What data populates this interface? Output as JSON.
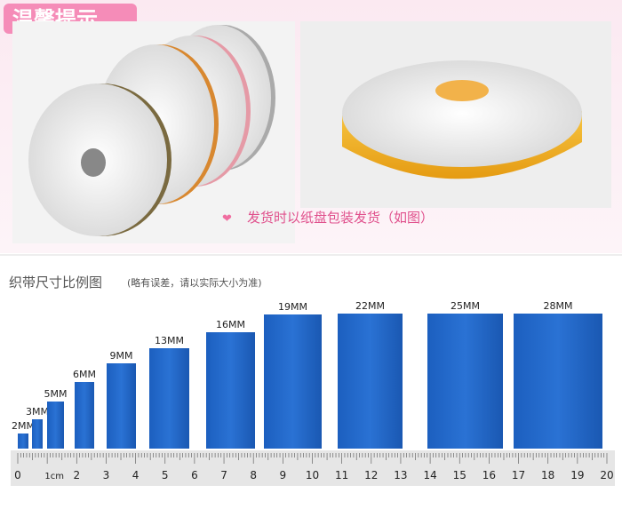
{
  "header": {
    "title": "温馨提示"
  },
  "photo_caption": "发货时以纸盘包装发货（如图）",
  "size_chart": {
    "title": "织带尺寸比例图",
    "note": "(略有误差，请以实际大小为准)",
    "ribbons": [
      "2MM",
      "3MM",
      "5MM",
      "6MM",
      "9MM",
      "13MM",
      "16MM",
      "19MM",
      "22MM",
      "25MM",
      "28MM"
    ],
    "ruler_labels": [
      "0",
      "1cm",
      "2",
      "3",
      "4",
      "5",
      "6",
      "7",
      "8",
      "9",
      "10",
      "11",
      "12",
      "13",
      "14",
      "15",
      "16",
      "17",
      "18",
      "19",
      "20"
    ]
  }
}
